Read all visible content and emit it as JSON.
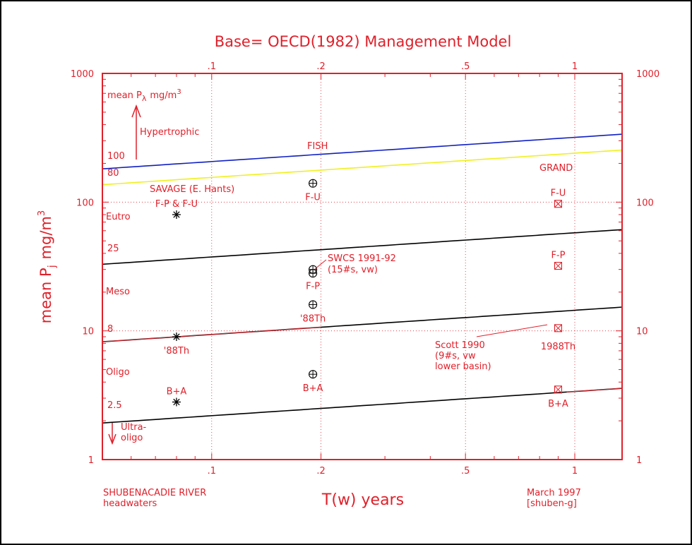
{
  "chart_data": {
    "type": "scatter",
    "title": "Base= OECD(1982) Management Model",
    "xlabel": "T(w) years",
    "ylabel": "mean P",
    "ylabel_sub": "j",
    "ylabel_unit": "mg/m",
    "ylabel_sup": "3",
    "xscale": "log",
    "yscale": "log",
    "xlim": [
      0.05,
      1.35
    ],
    "ylim": [
      1,
      1000
    ],
    "x_ticks": [
      0.1,
      0.2,
      0.5,
      1
    ],
    "x_tick_labels": [
      ".1",
      ".2",
      ".5",
      "1"
    ],
    "y_ticks": [
      1,
      10,
      100,
      1000
    ],
    "y_tick_labels": [
      "1",
      "10",
      "100",
      "1000"
    ],
    "grid": true,
    "curves": [
      {
        "name": "FISH",
        "color": "#1020c0",
        "a": 318.6
      },
      {
        "name": "80",
        "color": "#f0f020",
        "a": 240
      },
      {
        "name": "25",
        "color": "#000000",
        "a": 57.8
      },
      {
        "name": "8",
        "color": "#000000",
        "a": 14.45
      },
      {
        "name": "2.5",
        "color": "#000000",
        "a": 3.38
      }
    ],
    "curve_model": "a * x^0.188",
    "series": [
      {
        "name": "SAVAGE (E. Hants)",
        "marker": "asterisk",
        "color": "#000000",
        "points": [
          {
            "x": 0.08,
            "y": 80,
            "label": "F-P & F-U"
          },
          {
            "x": 0.08,
            "y": 9,
            "label": "'88Th"
          },
          {
            "x": 0.08,
            "y": 2.8,
            "label": "B+A"
          }
        ]
      },
      {
        "name": "SWCS 1991-92",
        "marker": "circle-plus",
        "color": "#000000",
        "points": [
          {
            "x": 0.19,
            "y": 140,
            "label": "F-U"
          },
          {
            "x": 0.19,
            "y": 30,
            "label": "F-P"
          },
          {
            "x": 0.19,
            "y": 28,
            "label": ""
          },
          {
            "x": 0.19,
            "y": 16,
            "label": "'88Th"
          },
          {
            "x": 0.19,
            "y": 4.6,
            "label": "B+A"
          }
        ]
      },
      {
        "name": "GRAND",
        "marker": "box-x",
        "color": "#e0202a",
        "points": [
          {
            "x": 0.9,
            "y": 97,
            "label": "F-U"
          },
          {
            "x": 0.9,
            "y": 32,
            "label": "F-P"
          },
          {
            "x": 0.9,
            "y": 10.5,
            "label": "1988Th"
          },
          {
            "x": 0.9,
            "y": 3.5,
            "label": "B+A"
          }
        ]
      }
    ],
    "annotations": {
      "mean_pl_prefix": "mean P",
      "mean_pl_sub": "λ",
      "mean_pl_unit": "mg/m",
      "mean_pl_sup": "3",
      "hypertrophic": "Hypertrophic",
      "fish": "FISH",
      "grand": "GRAND",
      "savage": "SAVAGE (E. Hants)",
      "eutro": "Eutro",
      "meso": "Meso",
      "oligo": "Oligo",
      "ultra1": "Ultra-",
      "ultra2": "oligo",
      "val100": "100",
      "val80": "80",
      "val25": "25",
      "val8": "8",
      "val25b": "2.5",
      "swcs1": "SWCS 1991-92",
      "swcs2": "(15#s, vw)",
      "scott1": "Scott 1990",
      "scott2": "(9#s, vw",
      "scott3": "lower basin)",
      "river1": "SHUBENACADIE RIVER",
      "river2": "headwaters",
      "date1": "March 1997",
      "date2": "[shuben-g]"
    }
  }
}
